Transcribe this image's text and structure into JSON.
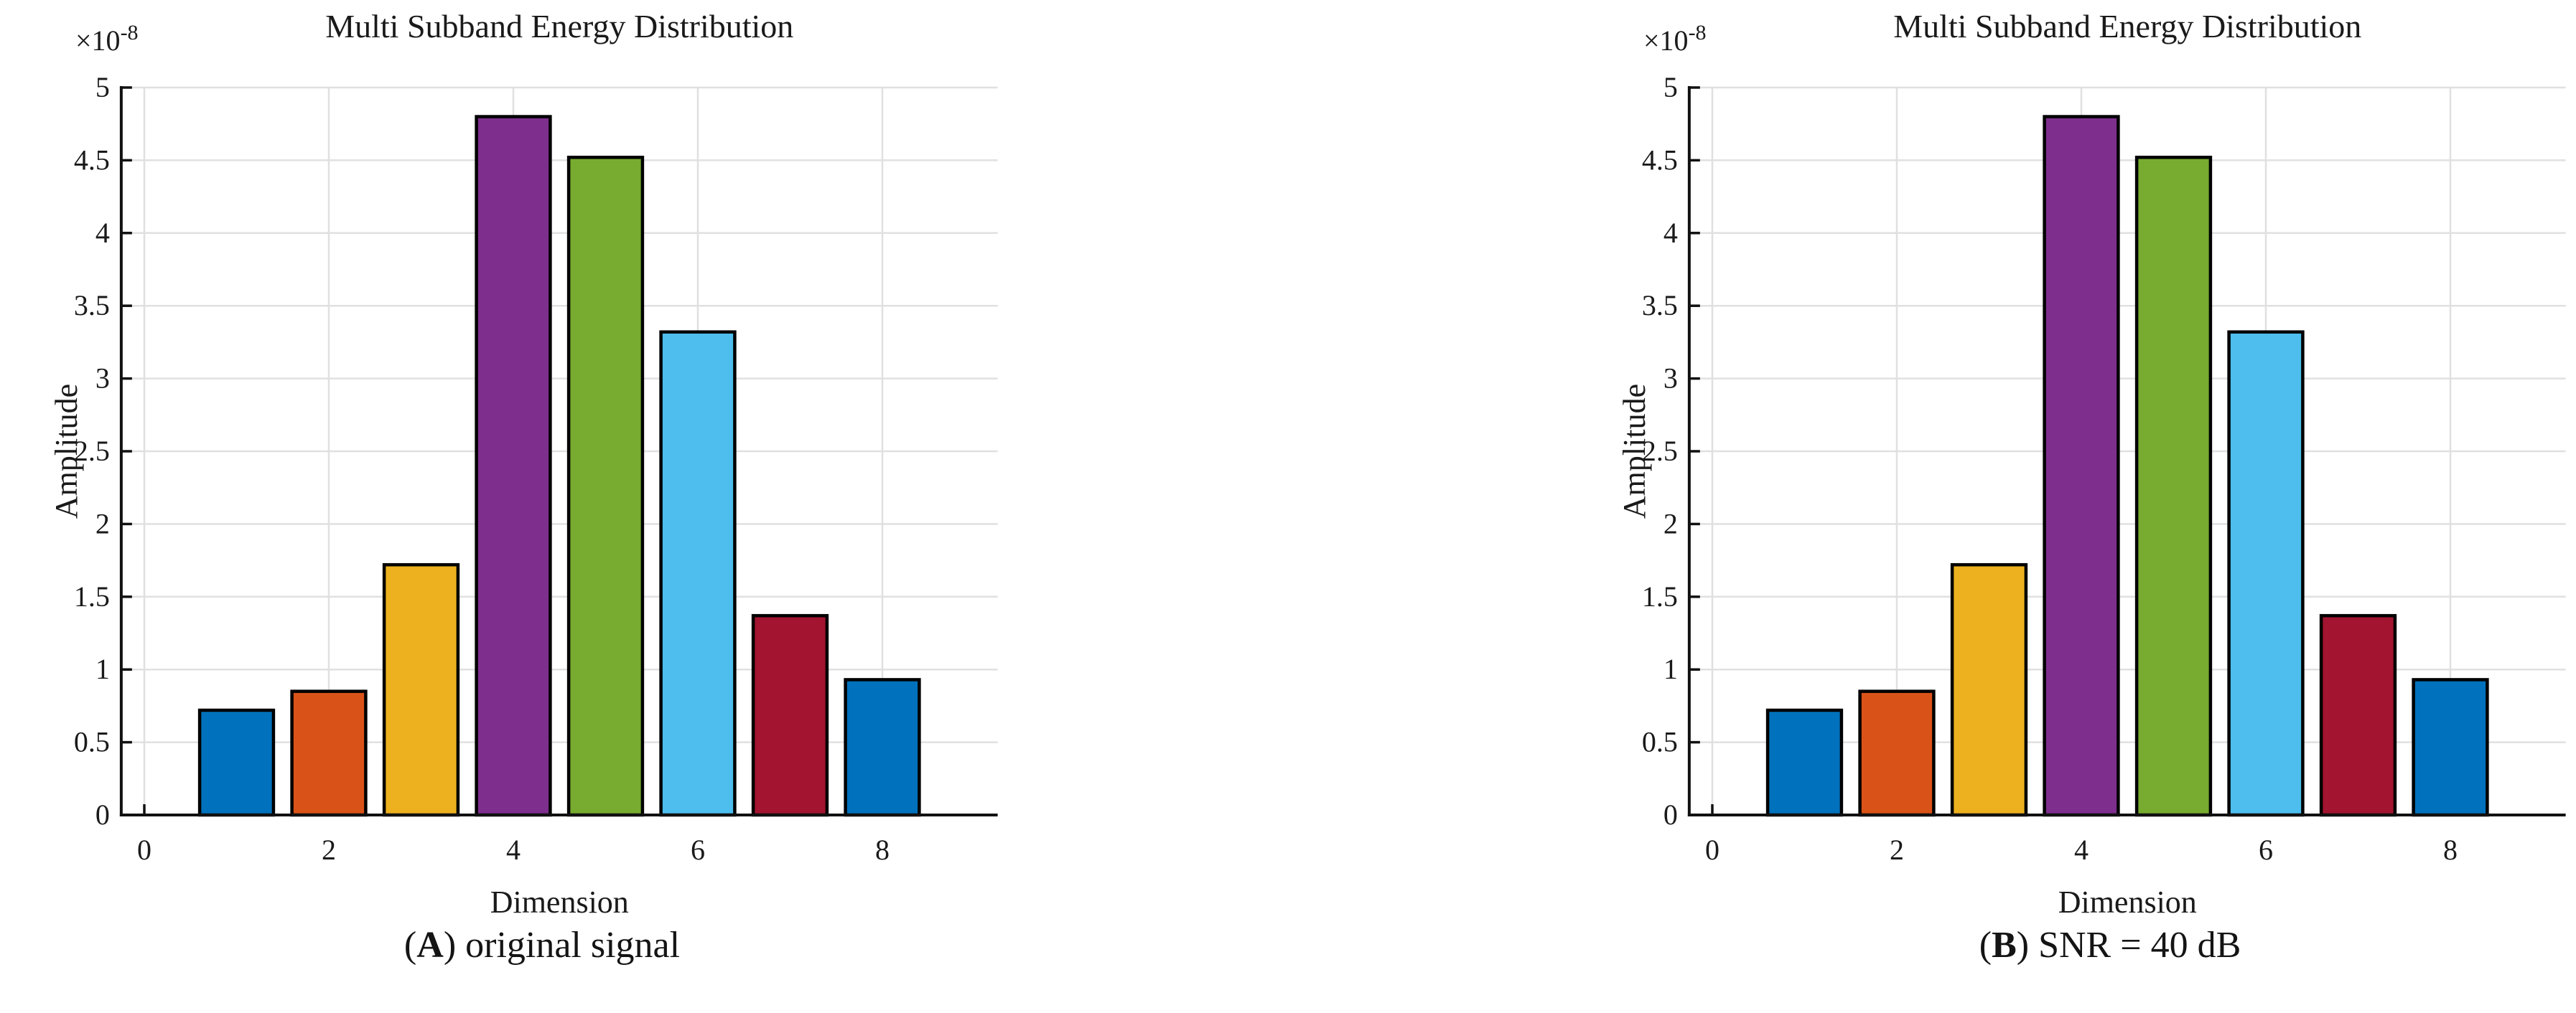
{
  "page": {
    "background": "#ffffff"
  },
  "chart_data": [
    {
      "type": "bar",
      "title": "Multi Subband Energy Distribution",
      "y_scale_prefix": "×10",
      "y_scale_exponent": "-8",
      "xlabel": "Dimension",
      "ylabel": "Amplitude",
      "caption_pre": "(",
      "caption_letter": "A",
      "caption_post": ") original signal",
      "x": [
        1,
        2,
        3,
        4,
        5,
        6,
        7,
        8
      ],
      "values": [
        0.72,
        0.85,
        1.72,
        4.8,
        4.52,
        3.32,
        1.37,
        0.93
      ],
      "bar_width": 0.8,
      "bar_colors": [
        "#0072BD",
        "#D95319",
        "#EDB120",
        "#7E2F8E",
        "#77AC30",
        "#4DBEEE",
        "#A2142F",
        "#0072BD"
      ],
      "bar_edge_color": "#000000",
      "xlim": [
        -0.25,
        9.25
      ],
      "ylim": [
        0,
        5
      ],
      "xticks": [
        0,
        2,
        4,
        6,
        8
      ],
      "yticks": [
        0,
        0.5,
        1,
        1.5,
        2,
        2.5,
        3,
        3.5,
        4,
        4.5,
        5
      ],
      "grid": true,
      "grid_color": "#e0e0e0",
      "axis_color": "#111111",
      "legend_position": "none"
    },
    {
      "type": "bar",
      "title": "Multi Subband Energy Distribution",
      "y_scale_prefix": "×10",
      "y_scale_exponent": "-8",
      "xlabel": "Dimension",
      "ylabel": "Amplitude",
      "caption_pre": "(",
      "caption_letter": "B",
      "caption_post": ") SNR = 40 dB",
      "x": [
        1,
        2,
        3,
        4,
        5,
        6,
        7,
        8
      ],
      "values": [
        0.72,
        0.85,
        1.72,
        4.8,
        4.52,
        3.32,
        1.37,
        0.93
      ],
      "bar_width": 0.8,
      "bar_colors": [
        "#0072BD",
        "#D95319",
        "#EDB120",
        "#7E2F8E",
        "#77AC30",
        "#4DBEEE",
        "#A2142F",
        "#0072BD"
      ],
      "bar_edge_color": "#000000",
      "xlim": [
        -0.25,
        9.25
      ],
      "ylim": [
        0,
        5
      ],
      "xticks": [
        0,
        2,
        4,
        6,
        8
      ],
      "yticks": [
        0,
        0.5,
        1,
        1.5,
        2,
        2.5,
        3,
        3.5,
        4,
        4.5,
        5
      ],
      "grid": true,
      "grid_color": "#e0e0e0",
      "axis_color": "#111111",
      "legend_position": "none"
    }
  ]
}
